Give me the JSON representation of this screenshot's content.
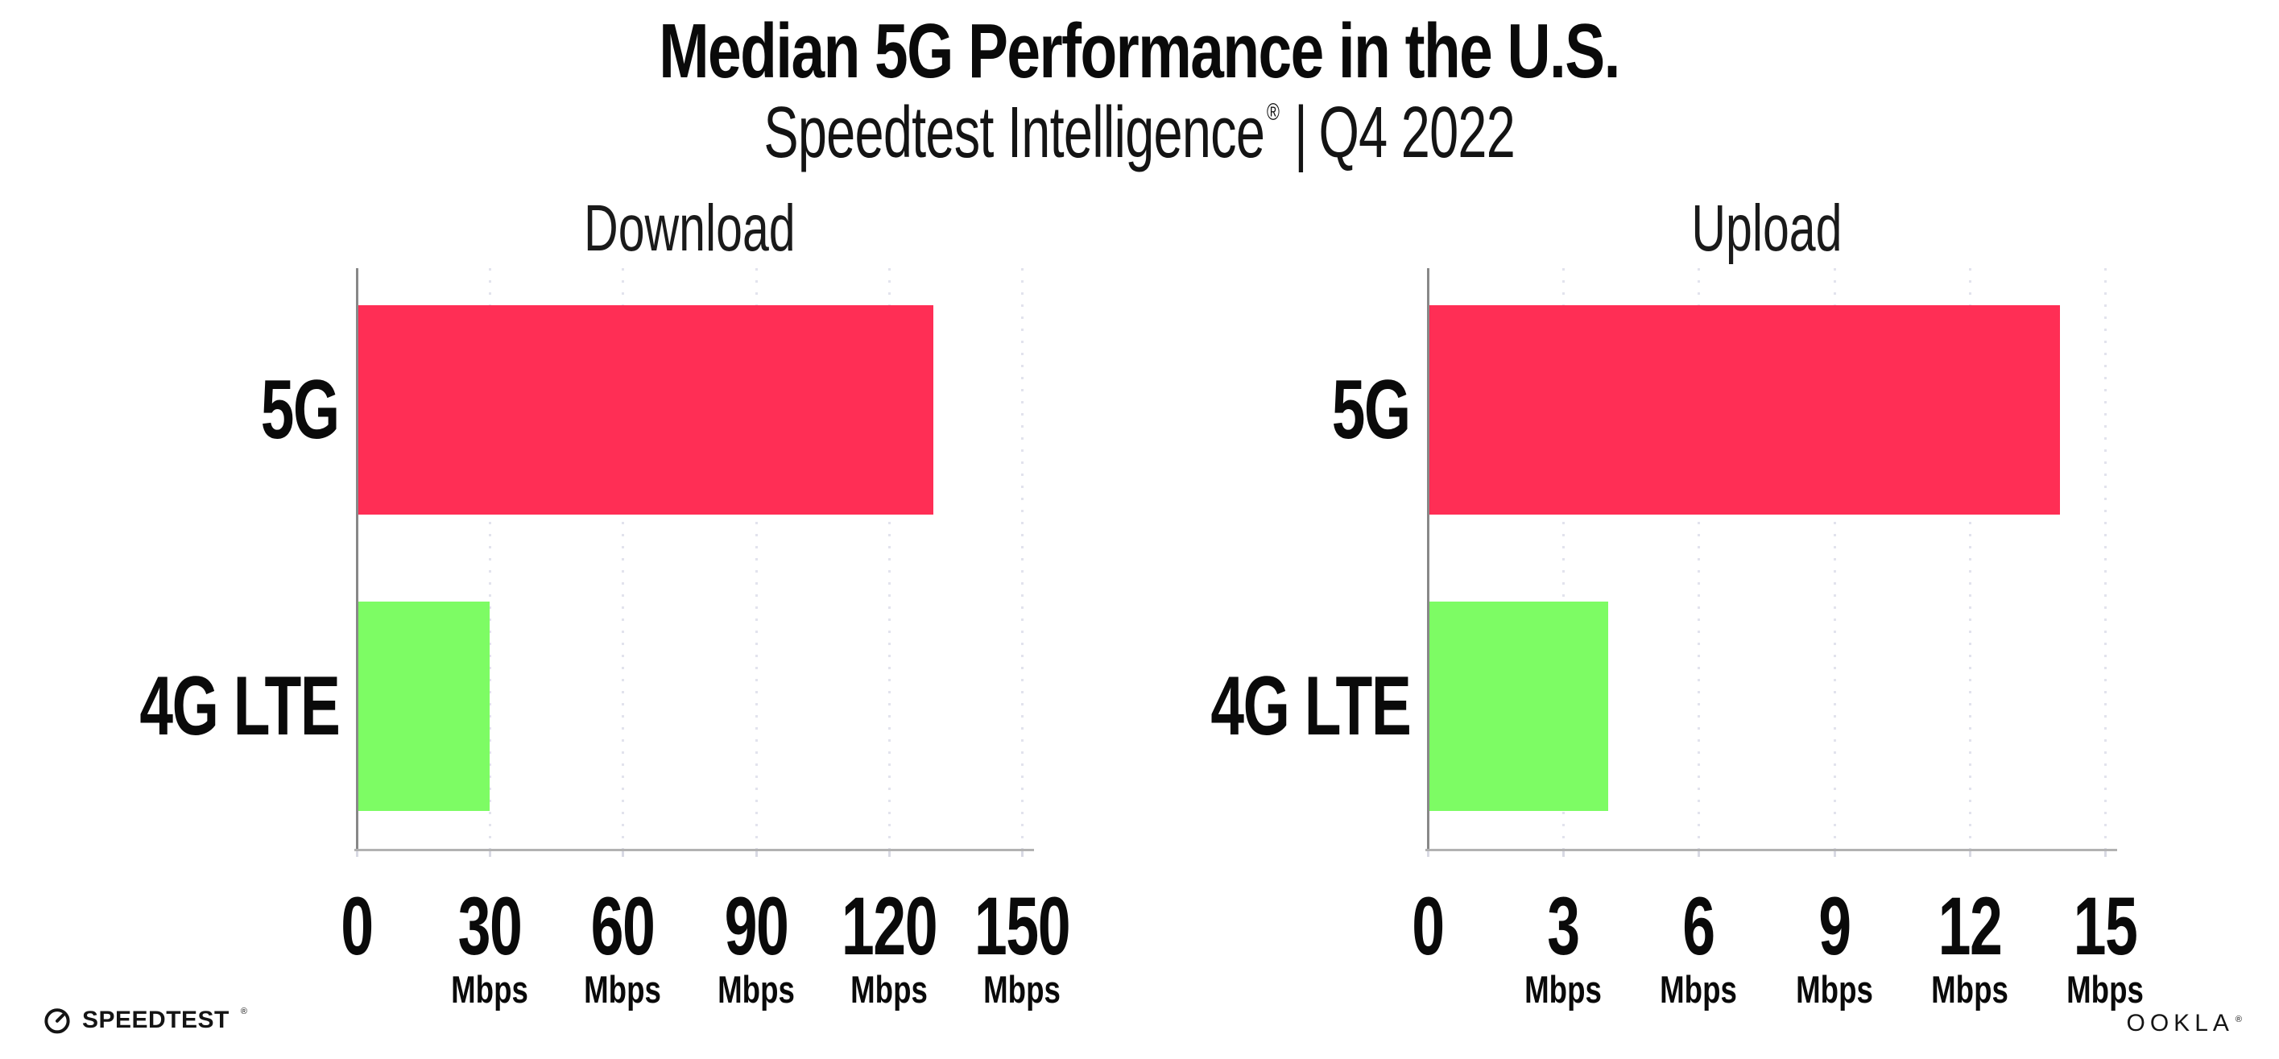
{
  "title": "Median 5G Performance in the U.S.",
  "subtitle": {
    "brand": "Speedtest Intelligence",
    "registered": "®",
    "separator": "|",
    "period": "Q4 2022"
  },
  "footer": {
    "speedtest_wordmark": "SPEEDTEST",
    "speedtest_mark": "®",
    "ookla_wordmark": "OOKLA",
    "ookla_mark": "®"
  },
  "colors": {
    "series": [
      "#FF2E55",
      "#7DFC64"
    ],
    "axis_y": "#888888",
    "axis_x": "#b2b2b2",
    "gridline": "#e2e3ed",
    "tick_mark": "#d8d9e3",
    "text": "#0a0a0a"
  },
  "chart_data": [
    {
      "type": "bar",
      "orientation": "horizontal",
      "title": "Download",
      "categories": [
        "5G",
        "4G LTE"
      ],
      "values": [
        130,
        30
      ],
      "unit": "Mbps",
      "xlim": [
        0,
        150
      ],
      "xticks": [
        0,
        30,
        60,
        90,
        120,
        150
      ],
      "grid": "dotted vertical gridlines at each tick",
      "legend": "none",
      "bar_colors": [
        "#FF2E55",
        "#7DFC64"
      ]
    },
    {
      "type": "bar",
      "orientation": "horizontal",
      "title": "Upload",
      "categories": [
        "5G",
        "4G LTE"
      ],
      "values": [
        14,
        4
      ],
      "unit": "Mbps",
      "xlim": [
        0,
        15
      ],
      "xticks": [
        0,
        3,
        6,
        9,
        12,
        15
      ],
      "grid": "dotted vertical gridlines at each tick",
      "legend": "none",
      "bar_colors": [
        "#FF2E55",
        "#7DFC64"
      ]
    }
  ]
}
